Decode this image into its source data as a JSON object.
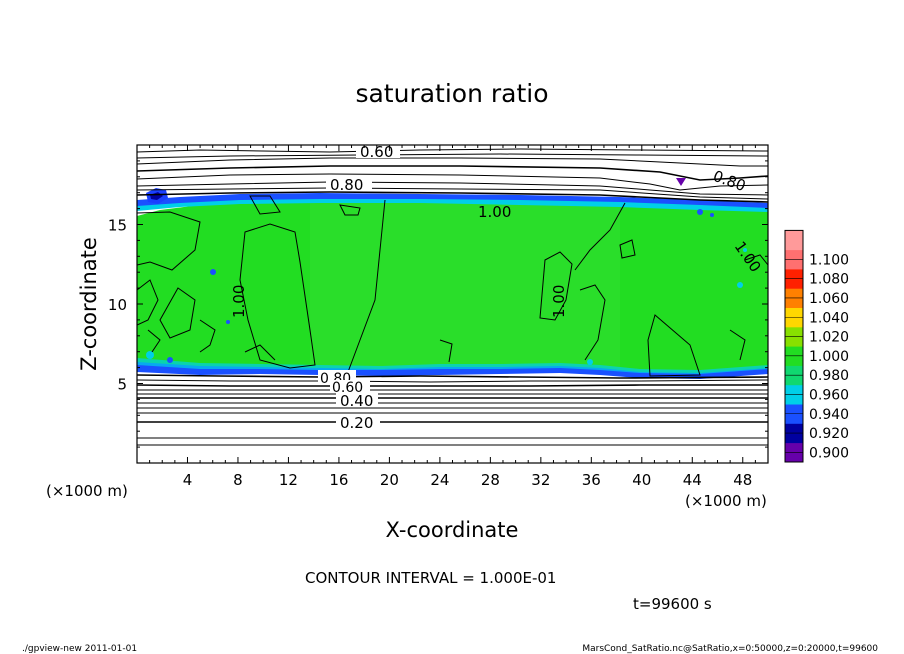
{
  "chart_data": {
    "type": "heatmap",
    "title": "saturation ratio",
    "xlabel": "X-coordinate",
    "ylabel": "Z-coordinate",
    "x_unit": "(×1000 m)",
    "y_unit": "(×1000 m)",
    "xlim": [
      0,
      50
    ],
    "ylim": [
      0,
      20
    ],
    "x_ticks": [
      "4",
      "8",
      "12",
      "16",
      "20",
      "24",
      "28",
      "32",
      "36",
      "40",
      "44",
      "48"
    ],
    "y_ticks": [
      "5",
      "10",
      "15"
    ],
    "contour_interval": "CONTOUR INTERVAL = 1.000E-01",
    "time_label": "t=99600 s",
    "contour_labels": [
      "0.60",
      "0.80",
      "0.80",
      "1.00",
      "1.00",
      "1.00",
      "1.00",
      "0.80",
      "0.60",
      "0.40",
      "0.20"
    ],
    "colorbar": {
      "levels": [
        "0.900",
        "0.920",
        "0.940",
        "0.960",
        "0.980",
        "1.000",
        "1.020",
        "1.040",
        "1.060",
        "1.080",
        "1.100"
      ],
      "colors": [
        "#6600aa",
        "#0000a0",
        "#1a50ff",
        "#00cfe8",
        "#10d870",
        "#22dd22",
        "#88e000",
        "#ffd700",
        "#ff8000",
        "#ff2000",
        "#ff7070",
        "#ff9a9a"
      ]
    }
  },
  "footer": {
    "left": "./gpview-new   2011-01-01",
    "right": "MarsCond_SatRatio.nc@SatRatio,x=0:50000,z=0:20000,t=99600"
  }
}
